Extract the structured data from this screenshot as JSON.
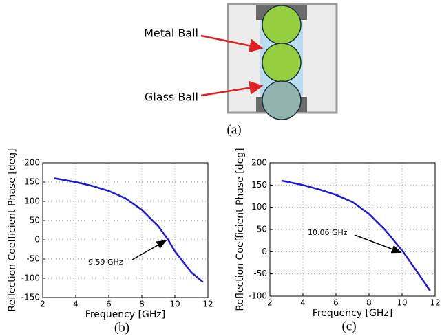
{
  "diagram": {
    "labels": [
      "Metal Ball",
      "Glass Ball"
    ],
    "caption": "(a)"
  },
  "chart_data": [
    {
      "type": "line",
      "caption": "(b)",
      "x_label": "Frequency [GHz]",
      "y_label": "Reflection Coefficient Phase [deg]",
      "x": [
        2.7,
        4,
        5,
        6,
        7,
        8,
        9,
        9.59,
        10,
        11,
        11.7
      ],
      "series": [
        {
          "color": "#1a1adc",
          "values": [
            160,
            150,
            140,
            127,
            108,
            78,
            35,
            0,
            -30,
            -85,
            -110
          ]
        }
      ],
      "xlim": [
        2,
        12
      ],
      "ylim": [
        -150,
        200
      ],
      "xticks": [
        2,
        4,
        6,
        8,
        10,
        12
      ],
      "yticks": [
        -150,
        -100,
        -50,
        0,
        50,
        100,
        150,
        200
      ],
      "grid": true,
      "annotation": {
        "text": "9.59 GHz",
        "x": 9.59,
        "y": 0
      }
    },
    {
      "type": "line",
      "caption": "(c)",
      "x_label": "Frequency [GHz]",
      "y_label": "Reflection Coefficient Phase [deg]",
      "x": [
        2.7,
        4,
        5,
        6,
        7,
        8,
        9,
        10.06,
        11,
        11.7
      ],
      "series": [
        {
          "color": "#1a1adc",
          "values": [
            160,
            150,
            140,
            128,
            112,
            85,
            48,
            0,
            -50,
            -88
          ]
        }
      ],
      "xlim": [
        2,
        12
      ],
      "ylim": [
        -100,
        200
      ],
      "xticks": [
        2,
        4,
        6,
        8,
        10,
        12
      ],
      "yticks": [
        -100,
        -50,
        0,
        50,
        100,
        150,
        200
      ],
      "grid": true,
      "annotation": {
        "text": "10.06 GHz",
        "x": 10.06,
        "y": 0
      }
    }
  ]
}
